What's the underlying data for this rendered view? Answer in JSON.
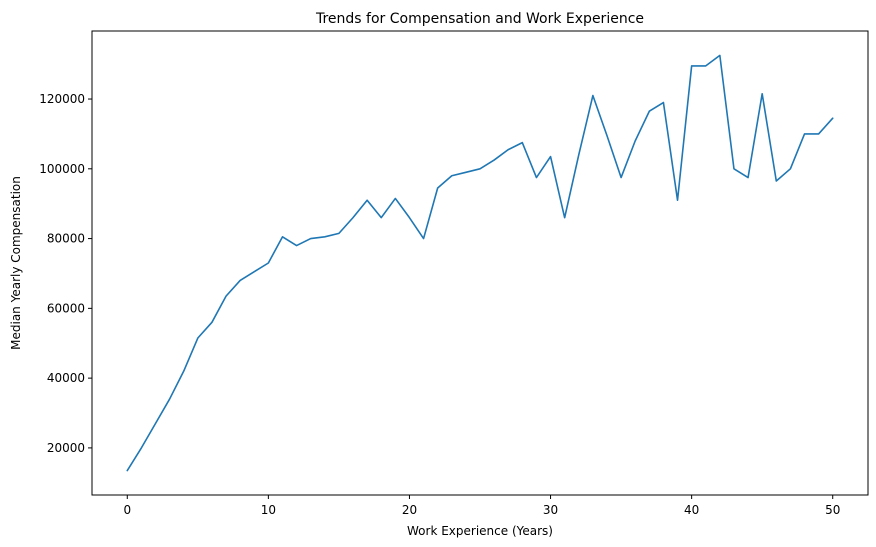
{
  "chart_data": {
    "type": "line",
    "title": "Trends for Compensation and Work Experience",
    "xlabel": "Work Experience (Years)",
    "ylabel": "Median Yearly Compensation",
    "xlim": [
      -2.5,
      52.5
    ],
    "ylim": [
      6500,
      139500
    ],
    "xticks": [
      0,
      10,
      20,
      30,
      40,
      50
    ],
    "yticks": [
      20000,
      40000,
      60000,
      80000,
      100000,
      120000
    ],
    "grid": false,
    "legend": "none",
    "color": "#1f77b4",
    "x": [
      0,
      1,
      2,
      3,
      4,
      5,
      6,
      7,
      8,
      9,
      10,
      11,
      12,
      13,
      14,
      15,
      16,
      17,
      18,
      19,
      20,
      21,
      22,
      23,
      24,
      25,
      26,
      27,
      28,
      29,
      30,
      31,
      32,
      33,
      34,
      35,
      36,
      37,
      38,
      39,
      40,
      41,
      42,
      43,
      44,
      45,
      46,
      47,
      48,
      49,
      50
    ],
    "series": [
      {
        "values": [
          13500,
          20000,
          27000,
          34000,
          42000,
          51500,
          56000,
          63500,
          68000,
          70500,
          73000,
          80500,
          78000,
          80000,
          80500,
          81500,
          86000,
          91000,
          86000,
          91500,
          86000,
          80000,
          94500,
          98000,
          99000,
          100000,
          102500,
          105500,
          107500,
          97500,
          103500,
          86000,
          104000,
          121000,
          109500,
          97500,
          108000,
          116500,
          119000,
          91000,
          129500,
          129500,
          132500,
          100000,
          97500,
          121500,
          96500,
          100000,
          110000,
          110000,
          114500
        ]
      }
    ]
  }
}
